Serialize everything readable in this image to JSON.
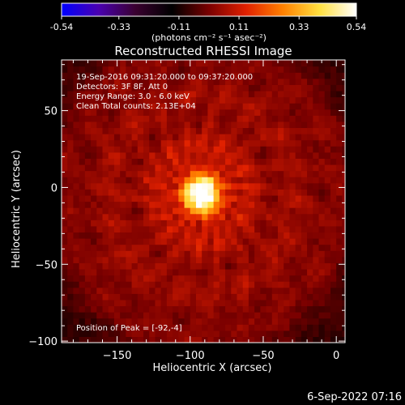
{
  "colorbar": {
    "ticks": [
      "-0.54",
      "-0.33",
      "-0.11",
      "0.11",
      "0.33",
      "0.54"
    ],
    "tick_values": [
      -0.54,
      -0.33,
      -0.11,
      0.11,
      0.33,
      0.54
    ],
    "range": [
      -0.54,
      0.54
    ],
    "unit_label": "(photons cm⁻² s⁻¹ asec⁻²)",
    "colormap": [
      "#0000ff",
      "#4a00b0",
      "#3a0030",
      "#000000",
      "#7a0000",
      "#e02000",
      "#ff8000",
      "#ffe040",
      "#ffffff"
    ]
  },
  "chart_data": {
    "type": "heatmap",
    "title": "Reconstructed RHESSI Image",
    "xlabel": "Heliocentric X (arcsec)",
    "ylabel": "Heliocentric Y (arcsec)",
    "xlim": [
      -188,
      6
    ],
    "ylim": [
      -101,
      83
    ],
    "xticks": [
      -150,
      -100,
      -50,
      0
    ],
    "yticks": [
      50,
      0,
      -50,
      -100
    ],
    "grid": false,
    "peak": {
      "x": -92,
      "y": -4,
      "value": 0.54
    },
    "info_lines": [
      "19-Sep-2016 09:31:20.000 to 09:37:20.000",
      "Detectors: 3F 8F, Att 0",
      "Energy Range: 3.0 - 6.0 keV",
      "Clean     Total counts: 2.13E+04"
    ],
    "peak_label": "Position of Peak = [-92,-4]"
  },
  "footer": {
    "timestamp": "6-Sep-2022 07:16"
  }
}
